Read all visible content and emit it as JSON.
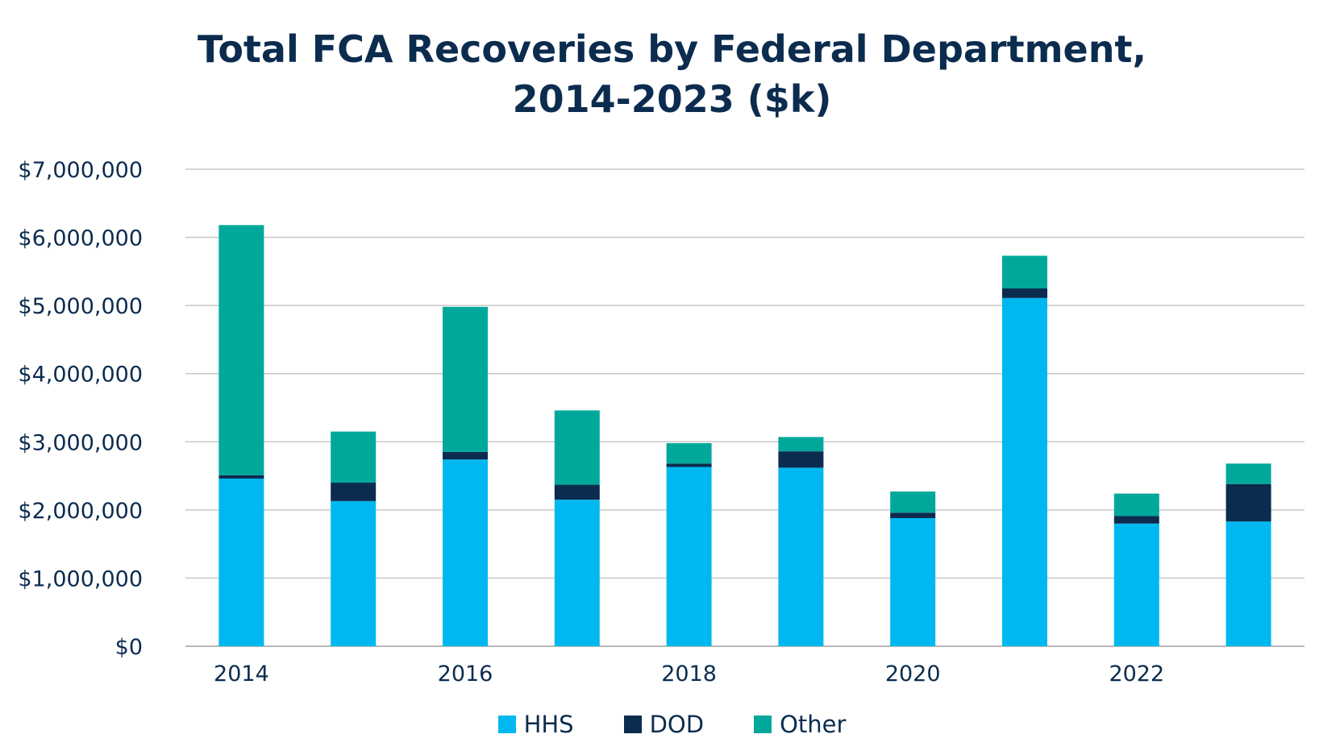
{
  "chart_data": {
    "type": "bar",
    "stacked": true,
    "title_line1": "Total FCA Recoveries by Federal Department,",
    "title_line2": "2014-2023 ($k)",
    "xlabel": "",
    "ylabel": "",
    "x": [
      2014,
      2015,
      2016,
      2017,
      2018,
      2019,
      2020,
      2021,
      2022,
      2023
    ],
    "x_tick_labels": [
      "2014",
      "",
      "2016",
      "",
      "2018",
      "",
      "2020",
      "",
      "2022",
      ""
    ],
    "ylim": [
      0,
      7000000
    ],
    "y_ticks": [
      0,
      1000000,
      2000000,
      3000000,
      4000000,
      5000000,
      6000000,
      7000000
    ],
    "y_tick_labels": [
      "$0",
      "$1,000,000",
      "$2,000,000",
      "$3,000,000",
      "$4,000,000",
      "$5,000,000",
      "$6,000,000",
      "$7,000,000"
    ],
    "grid": true,
    "legend_position": "bottom",
    "series": [
      {
        "name": "HHS",
        "color": "#00b8f0",
        "values": [
          2460000,
          2130000,
          2740000,
          2150000,
          2630000,
          2620000,
          1880000,
          5110000,
          1800000,
          1830000
        ]
      },
      {
        "name": "DOD",
        "color": "#0b2c4f",
        "values": [
          50000,
          270000,
          110000,
          220000,
          50000,
          240000,
          80000,
          140000,
          110000,
          550000
        ]
      },
      {
        "name": "Other",
        "color": "#00a89c",
        "values": [
          3670000,
          750000,
          2130000,
          1090000,
          300000,
          210000,
          310000,
          480000,
          330000,
          300000
        ]
      }
    ]
  }
}
